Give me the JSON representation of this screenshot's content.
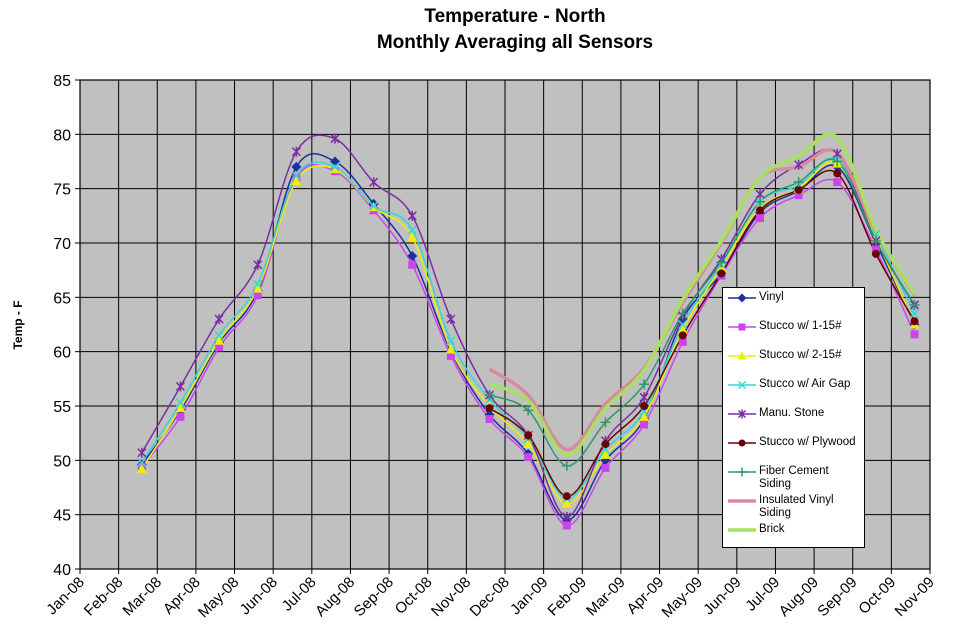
{
  "chart_data": {
    "type": "line",
    "title": "Temperature - North",
    "subtitle": "Monthly Averaging all Sensors",
    "y_label": "Temp - F",
    "categories": [
      "Jan-08",
      "Feb-08",
      "Mar-08",
      "Apr-08",
      "May-08",
      "Jun-08",
      "Jul-08",
      "Aug-08",
      "Sep-08",
      "Oct-08",
      "Nov-08",
      "Dec-08",
      "Jan-09",
      "Feb-09",
      "Mar-09",
      "Apr-09",
      "May-09",
      "Jun-09",
      "Jul-09",
      "Aug-09",
      "Sep-09",
      "Oct-09",
      "Nov-09"
    ],
    "ylim": [
      40,
      85
    ],
    "yticks": [
      40,
      45,
      50,
      55,
      60,
      65,
      70,
      75,
      80,
      85
    ],
    "grid": true,
    "series": [
      {
        "name": "Vinyl",
        "color": "#1f2f9f",
        "marker": "diamond",
        "values": [
          null,
          49.6,
          54.6,
          60.8,
          65.6,
          77.0,
          77.5,
          73.6,
          68.8,
          60.0,
          54.2,
          50.6,
          44.5,
          50.0,
          53.8,
          63.0,
          67.2,
          72.8,
          74.8,
          77.0,
          70.0,
          62.5,
          null
        ]
      },
      {
        "name": "Stucco w/ 1-15#",
        "color": "#cc44ee",
        "marker": "square",
        "values": [
          null,
          49.4,
          54.0,
          60.4,
          65.2,
          76.0,
          76.6,
          73.0,
          68.0,
          59.6,
          53.8,
          50.3,
          44.0,
          49.3,
          53.3,
          60.9,
          67.0,
          72.3,
          74.4,
          75.6,
          69.4,
          61.6,
          null
        ]
      },
      {
        "name": "Stucco w/ 2-15#",
        "color": "#eeee00",
        "marker": "triangle",
        "values": [
          null,
          49.2,
          54.8,
          61.0,
          65.8,
          75.7,
          76.8,
          73.3,
          70.5,
          60.2,
          55.0,
          51.5,
          46.0,
          50.5,
          54.0,
          62.0,
          67.8,
          73.2,
          75.0,
          77.3,
          70.4,
          62.5,
          null
        ]
      },
      {
        "name": "Stucco w/ Air Gap",
        "color": "#33d6d6",
        "marker": "cross",
        "values": [
          null,
          49.8,
          55.3,
          61.5,
          66.2,
          76.2,
          77.0,
          73.4,
          71.2,
          61.0,
          55.6,
          52.0,
          46.5,
          51.0,
          54.5,
          62.5,
          68.0,
          73.8,
          75.3,
          77.7,
          70.8,
          63.5,
          null
        ]
      },
      {
        "name": "Manu. Stone",
        "color": "#7a2fa0",
        "marker": "star",
        "values": [
          null,
          50.7,
          56.8,
          63.0,
          68.0,
          78.4,
          79.6,
          75.6,
          72.5,
          63.0,
          56.0,
          52.3,
          44.8,
          51.8,
          55.8,
          63.3,
          68.5,
          74.5,
          77.2,
          78.2,
          70.2,
          64.3,
          null
        ]
      },
      {
        "name": "Stucco w/ Plywood",
        "color": "#6b0000",
        "marker": "circle",
        "values": [
          null,
          null,
          null,
          null,
          null,
          null,
          null,
          null,
          null,
          null,
          54.8,
          52.3,
          46.7,
          51.5,
          55.0,
          61.5,
          67.2,
          73.0,
          74.9,
          76.4,
          69.0,
          62.8,
          null
        ]
      },
      {
        "name": "Fiber Cement Siding",
        "color": "#2a9a6a",
        "marker": "plus",
        "values": [
          null,
          null,
          null,
          null,
          null,
          null,
          null,
          null,
          null,
          null,
          56.0,
          54.6,
          49.5,
          53.5,
          57.0,
          63.5,
          68.2,
          73.8,
          75.6,
          77.5,
          70.2,
          64.3,
          null
        ]
      },
      {
        "name": "Insulated Vinyl Siding",
        "color": "#d88aa0",
        "marker": "none",
        "values": [
          null,
          null,
          null,
          null,
          null,
          null,
          null,
          null,
          null,
          null,
          58.4,
          56.0,
          51.0,
          55.2,
          58.5,
          64.5,
          70.0,
          76.0,
          77.0,
          78.3,
          71.0,
          65.2,
          null
        ]
      },
      {
        "name": "Brick",
        "color": "#a8e060",
        "marker": "none",
        "values": [
          null,
          null,
          null,
          null,
          null,
          null,
          null,
          null,
          null,
          null,
          57.0,
          55.5,
          50.5,
          54.8,
          58.3,
          64.8,
          70.2,
          76.0,
          78.0,
          79.7,
          71.2,
          65.3,
          null
        ]
      }
    ]
  }
}
